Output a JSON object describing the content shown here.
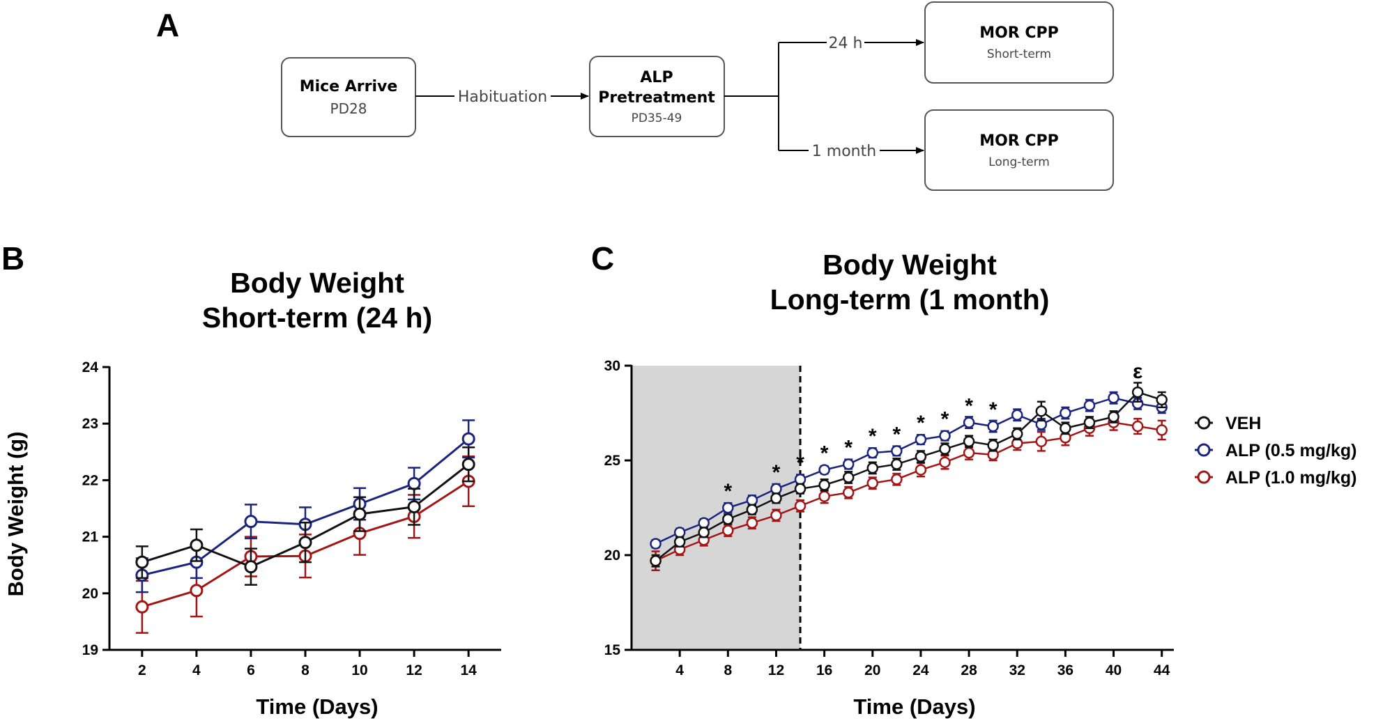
{
  "flow": {
    "panel_label": "A",
    "boxes": {
      "mice": {
        "title": "Mice Arrive",
        "sub": "PD28"
      },
      "alp": {
        "title_line1": "ALP",
        "title_line2": "Pretreatment",
        "sub": "PD35-49"
      },
      "short": {
        "title": "MOR CPP",
        "sub": "Short-term"
      },
      "long": {
        "title": "MOR CPP",
        "sub": "Long-term"
      }
    },
    "edges": {
      "habituation": "Habituation",
      "short": "24 h",
      "long": "1 month"
    }
  },
  "chart_data": [
    {
      "panel_label": "B",
      "type": "line",
      "title": [
        "Body Weight",
        "Short-term (24 h)"
      ],
      "xlabel": "Time (Days)",
      "ylabel": "Body Weight (g)",
      "xlim": [
        0.8,
        15.2
      ],
      "ylim": [
        19,
        24
      ],
      "xticks": [
        2,
        4,
        6,
        8,
        10,
        12,
        14
      ],
      "yticks": [
        19,
        20,
        21,
        22,
        23,
        24
      ],
      "x": [
        2,
        4,
        6,
        8,
        10,
        12,
        14
      ],
      "series": [
        {
          "name": "VEH",
          "color": "#111111",
          "values": [
            20.55,
            20.85,
            20.47,
            20.9,
            21.4,
            21.53,
            22.28
          ],
          "errors": [
            0.28,
            0.28,
            0.32,
            0.35,
            0.3,
            0.32,
            0.3
          ]
        },
        {
          "name": "ALP (0.5 mg/kg)",
          "color": "#1a237e",
          "values": [
            20.32,
            20.55,
            21.27,
            21.22,
            21.58,
            21.94,
            22.73
          ],
          "errors": [
            0.3,
            0.28,
            0.3,
            0.3,
            0.28,
            0.28,
            0.33
          ]
        },
        {
          "name": "ALP (1.0 mg/kg)",
          "color": "#a31515",
          "values": [
            19.76,
            20.05,
            20.65,
            20.66,
            21.06,
            21.36,
            21.98
          ],
          "errors": [
            0.46,
            0.46,
            0.35,
            0.38,
            0.38,
            0.38,
            0.44
          ]
        }
      ]
    },
    {
      "panel_label": "C",
      "type": "line",
      "title": [
        "Body Weight",
        "Long-term (1 month)"
      ],
      "xlabel": "Time (Days)",
      "ylabel": "",
      "xlim": [
        0,
        45
      ],
      "ylim": [
        15,
        30
      ],
      "xticks": [
        4,
        8,
        12,
        16,
        20,
        24,
        28,
        32,
        36,
        40,
        44
      ],
      "yticks": [
        15,
        20,
        25,
        30
      ],
      "shaded_x_range": [
        0,
        14
      ],
      "dashed_line_x": 14,
      "x": [
        2,
        4,
        6,
        8,
        10,
        12,
        14,
        16,
        18,
        20,
        22,
        24,
        26,
        28,
        30,
        32,
        34,
        36,
        38,
        40,
        42,
        44
      ],
      "series": [
        {
          "name": "VEH",
          "color": "#111111",
          "values": [
            19.7,
            20.7,
            21.2,
            21.9,
            22.4,
            23.0,
            23.5,
            23.7,
            24.1,
            24.6,
            24.8,
            25.2,
            25.6,
            26.0,
            25.8,
            26.4,
            27.6,
            26.7,
            27.0,
            27.3,
            28.6,
            28.2
          ],
          "errors": [
            0.3,
            0.25,
            0.25,
            0.25,
            0.25,
            0.25,
            0.25,
            0.3,
            0.3,
            0.3,
            0.3,
            0.3,
            0.3,
            0.3,
            0.3,
            0.3,
            0.5,
            0.3,
            0.3,
            0.3,
            0.5,
            0.4
          ]
        },
        {
          "name": "ALP (0.5 mg/kg)",
          "color": "#1a237e",
          "values": [
            20.6,
            21.2,
            21.7,
            22.5,
            22.9,
            23.5,
            24.0,
            24.5,
            24.8,
            25.4,
            25.5,
            26.1,
            26.3,
            27.0,
            26.8,
            27.4,
            26.9,
            27.5,
            27.9,
            28.3,
            28.0,
            27.8
          ],
          "errors": [
            0.2,
            0.2,
            0.2,
            0.25,
            0.25,
            0.25,
            0.25,
            0.2,
            0.25,
            0.25,
            0.25,
            0.25,
            0.25,
            0.3,
            0.3,
            0.3,
            0.3,
            0.3,
            0.3,
            0.3,
            0.3,
            0.3
          ]
        },
        {
          "name": "ALP (1.0 mg/kg)",
          "color": "#a31515",
          "values": [
            19.7,
            20.3,
            20.8,
            21.3,
            21.7,
            22.1,
            22.6,
            23.1,
            23.3,
            23.8,
            24.0,
            24.5,
            24.9,
            25.4,
            25.3,
            25.9,
            26.0,
            26.2,
            26.7,
            27.0,
            26.8,
            26.6
          ],
          "errors": [
            0.5,
            0.3,
            0.3,
            0.3,
            0.3,
            0.3,
            0.3,
            0.35,
            0.3,
            0.3,
            0.3,
            0.35,
            0.35,
            0.35,
            0.3,
            0.35,
            0.5,
            0.4,
            0.4,
            0.4,
            0.4,
            0.5
          ]
        }
      ],
      "annotations": [
        {
          "x": 8,
          "y": 22.5,
          "text": "*"
        },
        {
          "x": 12,
          "y": 23.5,
          "text": "*"
        },
        {
          "x": 14,
          "y": 24.0,
          "text": "*"
        },
        {
          "x": 16,
          "y": 24.5,
          "text": "*"
        },
        {
          "x": 18,
          "y": 24.8,
          "text": "*"
        },
        {
          "x": 20,
          "y": 25.4,
          "text": "*"
        },
        {
          "x": 22,
          "y": 25.5,
          "text": "*"
        },
        {
          "x": 24,
          "y": 26.1,
          "text": "*"
        },
        {
          "x": 26,
          "y": 26.3,
          "text": "*"
        },
        {
          "x": 28,
          "y": 27.0,
          "text": "*"
        },
        {
          "x": 30,
          "y": 26.8,
          "text": "*"
        },
        {
          "x": 42,
          "y": 28.6,
          "text": "ε"
        }
      ],
      "legend": {
        "position": "right",
        "entries": [
          "VEH",
          "ALP (0.5 mg/kg)",
          "ALP (1.0 mg/kg)"
        ]
      }
    }
  ]
}
